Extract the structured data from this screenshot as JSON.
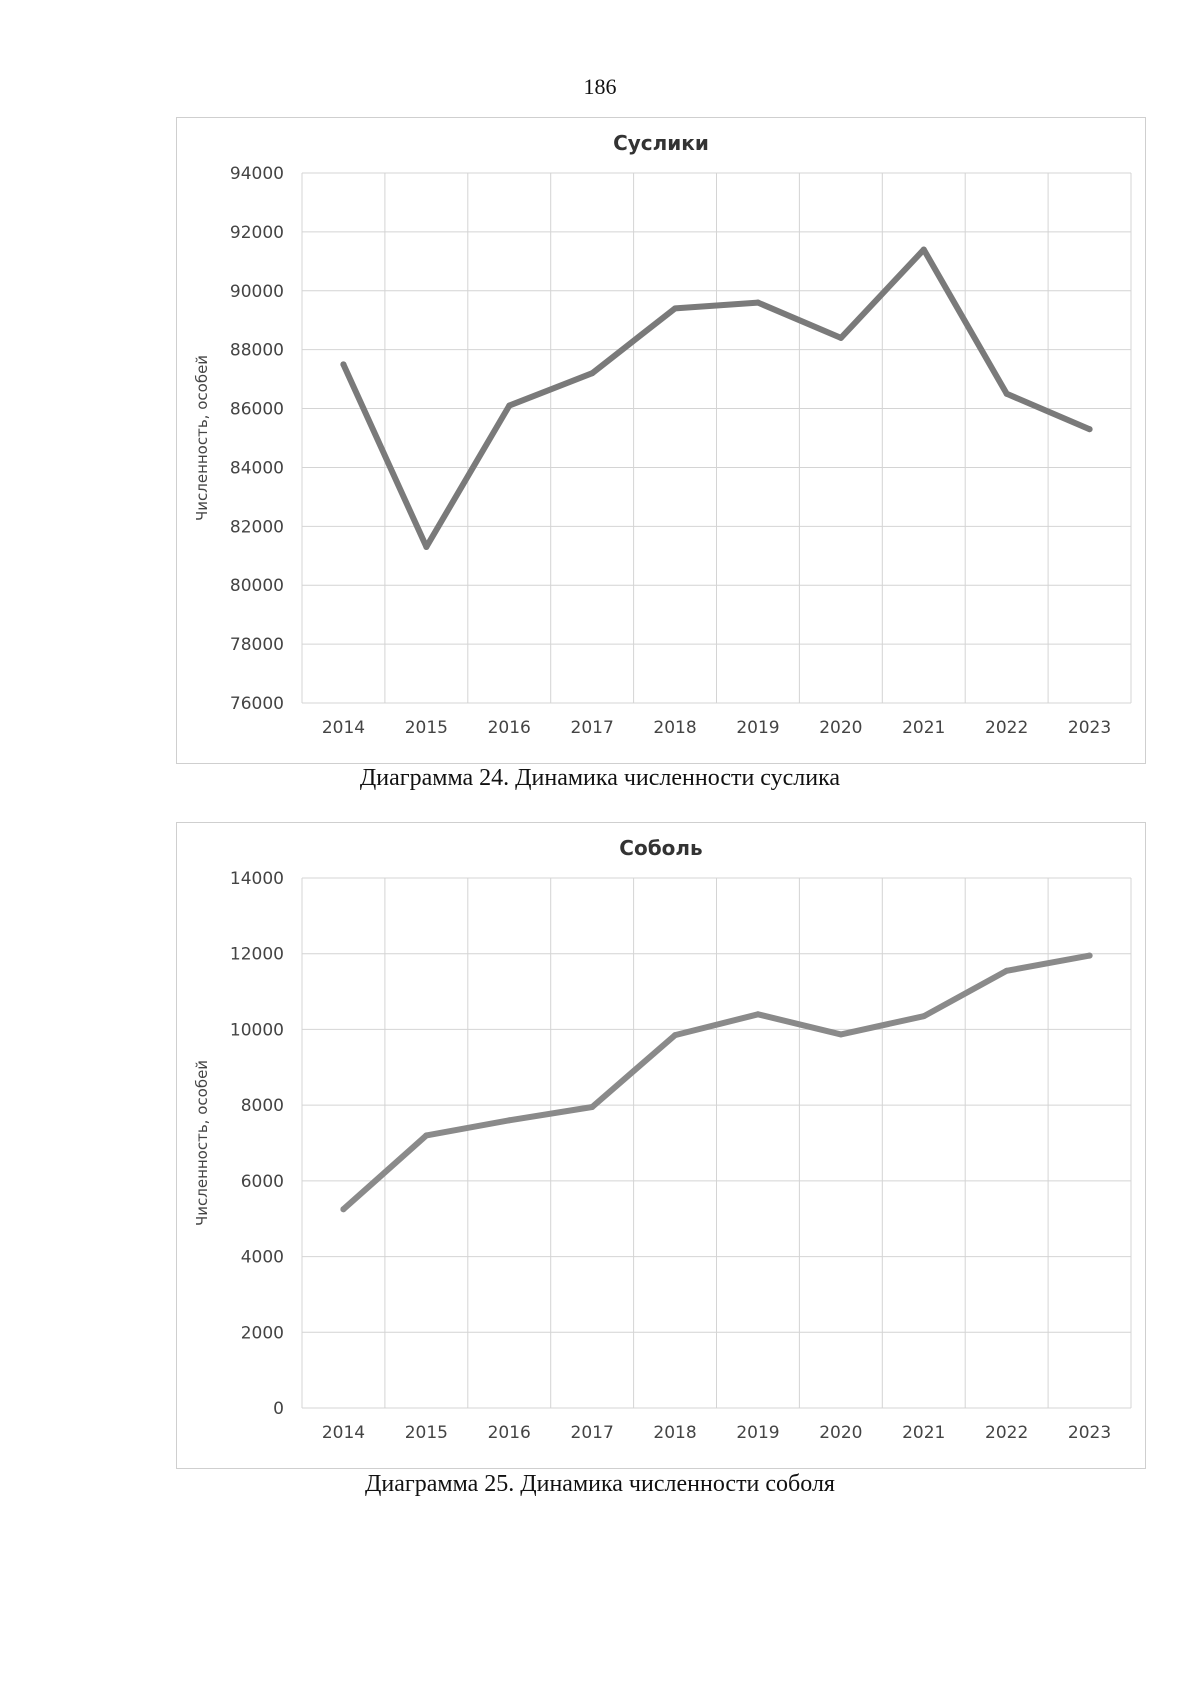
{
  "page_number": "186",
  "captions": [
    "Диаграмма 24. Динамика численности суслика",
    "Диаграмма 25. Динамика численности соболя"
  ],
  "chart_data": [
    {
      "type": "line",
      "title": "Суслики",
      "xlabel": "",
      "ylabel": "Численность, особей",
      "categories": [
        "2014",
        "2015",
        "2016",
        "2017",
        "2018",
        "2019",
        "2020",
        "2021",
        "2022",
        "2023"
      ],
      "series": [
        {
          "name": "Суслики",
          "values": [
            87500,
            81300,
            86100,
            87200,
            89400,
            89600,
            88400,
            91400,
            86500,
            85300
          ]
        }
      ],
      "yticks": [
        76000,
        78000,
        80000,
        82000,
        84000,
        86000,
        88000,
        90000,
        92000,
        94000
      ],
      "ylim": [
        76000,
        94000
      ],
      "grid": true,
      "line_color": "#7a7a7a"
    },
    {
      "type": "line",
      "title": "Соболь",
      "xlabel": "",
      "ylabel": "Численность, особей",
      "categories": [
        "2014",
        "2015",
        "2016",
        "2017",
        "2018",
        "2019",
        "2020",
        "2021",
        "2022",
        "2023"
      ],
      "series": [
        {
          "name": "Соболь",
          "values": [
            5250,
            7200,
            7600,
            7950,
            9850,
            10400,
            9870,
            10350,
            11550,
            11950
          ]
        }
      ],
      "yticks": [
        0,
        2000,
        4000,
        6000,
        8000,
        10000,
        12000,
        14000
      ],
      "ylim": [
        0,
        14000
      ],
      "grid": true,
      "line_color": "#8a8a8a"
    }
  ]
}
